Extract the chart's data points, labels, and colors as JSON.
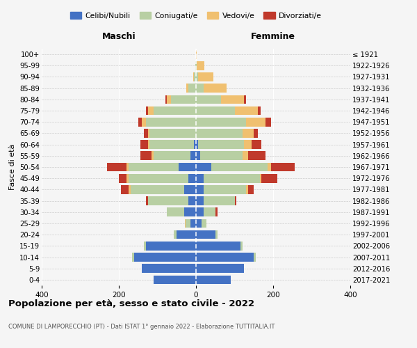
{
  "age_groups": [
    "0-4",
    "5-9",
    "10-14",
    "15-19",
    "20-24",
    "25-29",
    "30-34",
    "35-39",
    "40-44",
    "45-49",
    "50-54",
    "55-59",
    "60-64",
    "65-69",
    "70-74",
    "75-79",
    "80-84",
    "85-89",
    "90-94",
    "95-99",
    "100+"
  ],
  "birth_years": [
    "2017-2021",
    "2012-2016",
    "2007-2011",
    "2002-2006",
    "1997-2001",
    "1992-1996",
    "1987-1991",
    "1982-1986",
    "1977-1981",
    "1972-1976",
    "1967-1971",
    "1962-1966",
    "1957-1961",
    "1952-1956",
    "1947-1951",
    "1942-1946",
    "1937-1941",
    "1932-1936",
    "1927-1931",
    "1922-1926",
    "≤ 1921"
  ],
  "male": {
    "celibe": [
      110,
      140,
      160,
      130,
      50,
      15,
      30,
      20,
      30,
      20,
      45,
      15,
      5,
      0,
      0,
      0,
      0,
      0,
      0,
      0,
      0
    ],
    "coniugato": [
      0,
      0,
      5,
      5,
      8,
      12,
      45,
      105,
      140,
      155,
      130,
      95,
      115,
      120,
      130,
      110,
      65,
      20,
      5,
      2,
      0
    ],
    "vedovo": [
      0,
      0,
      0,
      0,
      0,
      2,
      0,
      0,
      5,
      5,
      5,
      5,
      5,
      5,
      10,
      15,
      10,
      5,
      3,
      0,
      0
    ],
    "divorziato": [
      0,
      0,
      0,
      0,
      0,
      0,
      0,
      5,
      20,
      20,
      50,
      30,
      20,
      10,
      10,
      5,
      5,
      0,
      0,
      0,
      0
    ]
  },
  "female": {
    "nubile": [
      90,
      125,
      150,
      115,
      50,
      15,
      20,
      20,
      20,
      20,
      40,
      10,
      5,
      0,
      0,
      0,
      0,
      0,
      0,
      0,
      0
    ],
    "coniugata": [
      0,
      0,
      5,
      5,
      5,
      12,
      30,
      80,
      110,
      145,
      145,
      110,
      120,
      120,
      130,
      100,
      65,
      20,
      5,
      2,
      0
    ],
    "vedova": [
      0,
      0,
      0,
      0,
      0,
      0,
      0,
      0,
      5,
      5,
      10,
      15,
      20,
      30,
      50,
      60,
      60,
      60,
      40,
      20,
      2
    ],
    "divorziata": [
      0,
      0,
      0,
      0,
      0,
      0,
      5,
      5,
      15,
      40,
      60,
      45,
      25,
      10,
      15,
      8,
      5,
      0,
      0,
      0,
      0
    ]
  },
  "colors": {
    "celibe": "#4472c4",
    "coniugato": "#b8cfa3",
    "vedovo": "#f0c070",
    "divorziato": "#c0392b"
  },
  "xlim": 400,
  "title": "Popolazione per età, sesso e stato civile - 2022",
  "subtitle": "COMUNE DI LAMPORECCHIO (PT) - Dati ISTAT 1° gennaio 2022 - Elaborazione TUTTITALIA.IT",
  "ylabel": "Fasce di età",
  "xlabel_left": "Maschi",
  "xlabel_right": "Femmine",
  "legend_labels": [
    "Celibi/Nubili",
    "Coniugati/e",
    "Vedovi/e",
    "Divorziati/e"
  ],
  "background_color": "#f5f5f5"
}
